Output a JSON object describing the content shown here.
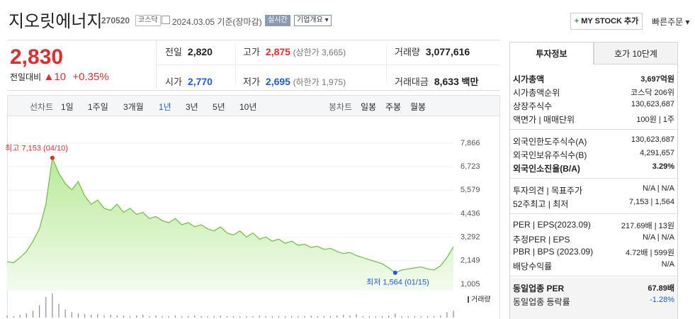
{
  "header": {
    "title": "지오릿에너지",
    "code": "270520",
    "market": "코스닥",
    "date": "2024.03.05",
    "basis": "기준(장마감)",
    "realtime": "실시간",
    "company": "기업개요",
    "mystock": "MY STOCK 추가",
    "quick_order": "빠른주문"
  },
  "quote": {
    "price": "2,830",
    "change_label": "전일대비",
    "change": "10",
    "change_rate": "+0.35%",
    "stats": [
      [
        {
          "label": "전일",
          "value": "2,820"
        },
        {
          "label": "고가",
          "value": "2,875",
          "extra": "(상한가 3,665)",
          "color": "#e22c2c"
        },
        {
          "label": "거래량",
          "value": "3,077,616"
        }
      ],
      [
        {
          "label": "시가",
          "value": "2,770",
          "color": "#1f5bd6"
        },
        {
          "label": "저가",
          "value": "2,695",
          "extra": "(하한가 1,975)",
          "color": "#1f5bd6"
        },
        {
          "label": "거래대금",
          "value": "8,633",
          "extra": "백만"
        }
      ]
    ]
  },
  "periods": {
    "line_label": "선차트",
    "line": [
      "1일",
      "1주일",
      "3개월",
      "1년",
      "3년",
      "5년",
      "10년"
    ],
    "selected": 3,
    "candle_label": "봉차트",
    "candle": [
      "일봉",
      "주봉",
      "월봉"
    ]
  },
  "chart": {
    "type": "area",
    "color": "#74c447",
    "grid": true,
    "ylim": [
      1005,
      7866
    ],
    "yticks": [
      {
        "value": 7866,
        "label": "7,866"
      },
      {
        "value": 6723,
        "label": "6,723"
      },
      {
        "value": 5579,
        "label": "5,579"
      },
      {
        "value": 4436,
        "label": "4,436"
      },
      {
        "value": 3292,
        "label": "3,292"
      },
      {
        "value": 2149,
        "label": "2,149"
      },
      {
        "value": 1005,
        "label": "1,005"
      }
    ],
    "values": [
      2100,
      2050,
      2300,
      2600,
      3100,
      3700,
      4900,
      7153,
      6400,
      5900,
      5600,
      6000,
      5300,
      4900,
      5100,
      4700,
      4600,
      4900,
      4500,
      4700,
      4400,
      4500,
      4200,
      4300,
      4100,
      4000,
      4200,
      3900,
      4000,
      3800,
      3900,
      3700,
      3600,
      3800,
      3500,
      3400,
      3600,
      3300,
      3500,
      3200,
      3300,
      3100,
      3200,
      3000,
      3100,
      2900,
      2950,
      2800,
      2850,
      2700,
      2750,
      2600,
      2500,
      2550,
      2400,
      2300,
      2200,
      2100,
      2000,
      1800,
      1564,
      1700,
      1750,
      1800,
      1850,
      1750,
      1700,
      1900,
      2300,
      2830
    ],
    "high_index": 7,
    "high_label": "최고 7,153 (04/10)",
    "low_index": 60,
    "low_label": "최저 1,564 (01/15)",
    "volume_label": "거래량",
    "volume": [
      3,
      2,
      4,
      6,
      10,
      18,
      30,
      35,
      20,
      12,
      8,
      6,
      5,
      4,
      5,
      3,
      4,
      3,
      3,
      2,
      3,
      4,
      2,
      3,
      2,
      2,
      3,
      2,
      2,
      3,
      2,
      2,
      2,
      3,
      2,
      2,
      2,
      2,
      2,
      3,
      2,
      2,
      2,
      2,
      2,
      2,
      2,
      3,
      2,
      2,
      2,
      3,
      4,
      3,
      5,
      2,
      2,
      2,
      2,
      3,
      6,
      2,
      2,
      2,
      2,
      2,
      2,
      3,
      8,
      10
    ]
  },
  "panel": {
    "tabs": [
      "투자정보",
      "호가 10단계"
    ],
    "active_tab": 0,
    "sections": [
      {
        "rows": [
          {
            "label": "시가총액",
            "value": "3,697억원",
            "bold": true
          },
          {
            "label": "시가총액순위",
            "value": "코스닥 206위"
          },
          {
            "label": "상장주식수",
            "value": "130,623,687"
          },
          {
            "label": "액면가 | 매매단위",
            "value": "100원 | 1주"
          }
        ]
      },
      {
        "rows": [
          {
            "label": "외국인한도주식수(A)",
            "value": "130,623,687"
          },
          {
            "label": "외국인보유주식수(B)",
            "value": "4,291,657"
          },
          {
            "label": "외국인소진율(B/A)",
            "value": "3.29%",
            "bold": true
          }
        ]
      },
      {
        "rows": [
          {
            "label": "투자의견 | 목표주가",
            "value": "N/A | N/A"
          },
          {
            "label": "52주최고 | 최저",
            "value": "7,153 | 1,564"
          }
        ]
      },
      {
        "rows": [
          {
            "label": "PER | EPS(2023.09)",
            "value": "217.69배 | 13원"
          },
          {
            "label": "추정PER | EPS",
            "value": "N/A | N/A"
          },
          {
            "label": "PBR | BPS (2023.09)",
            "value": "4.72배 | 599원"
          },
          {
            "label": "배당수익률",
            "value": "N/A"
          }
        ]
      },
      {
        "shaded": true,
        "rows": [
          {
            "label": "동일업종 PER",
            "value": "67.89배",
            "bold": true
          },
          {
            "label": "동일업종 등락률",
            "value": "-1.28%",
            "color": "#1f5bd6"
          }
        ]
      }
    ]
  }
}
